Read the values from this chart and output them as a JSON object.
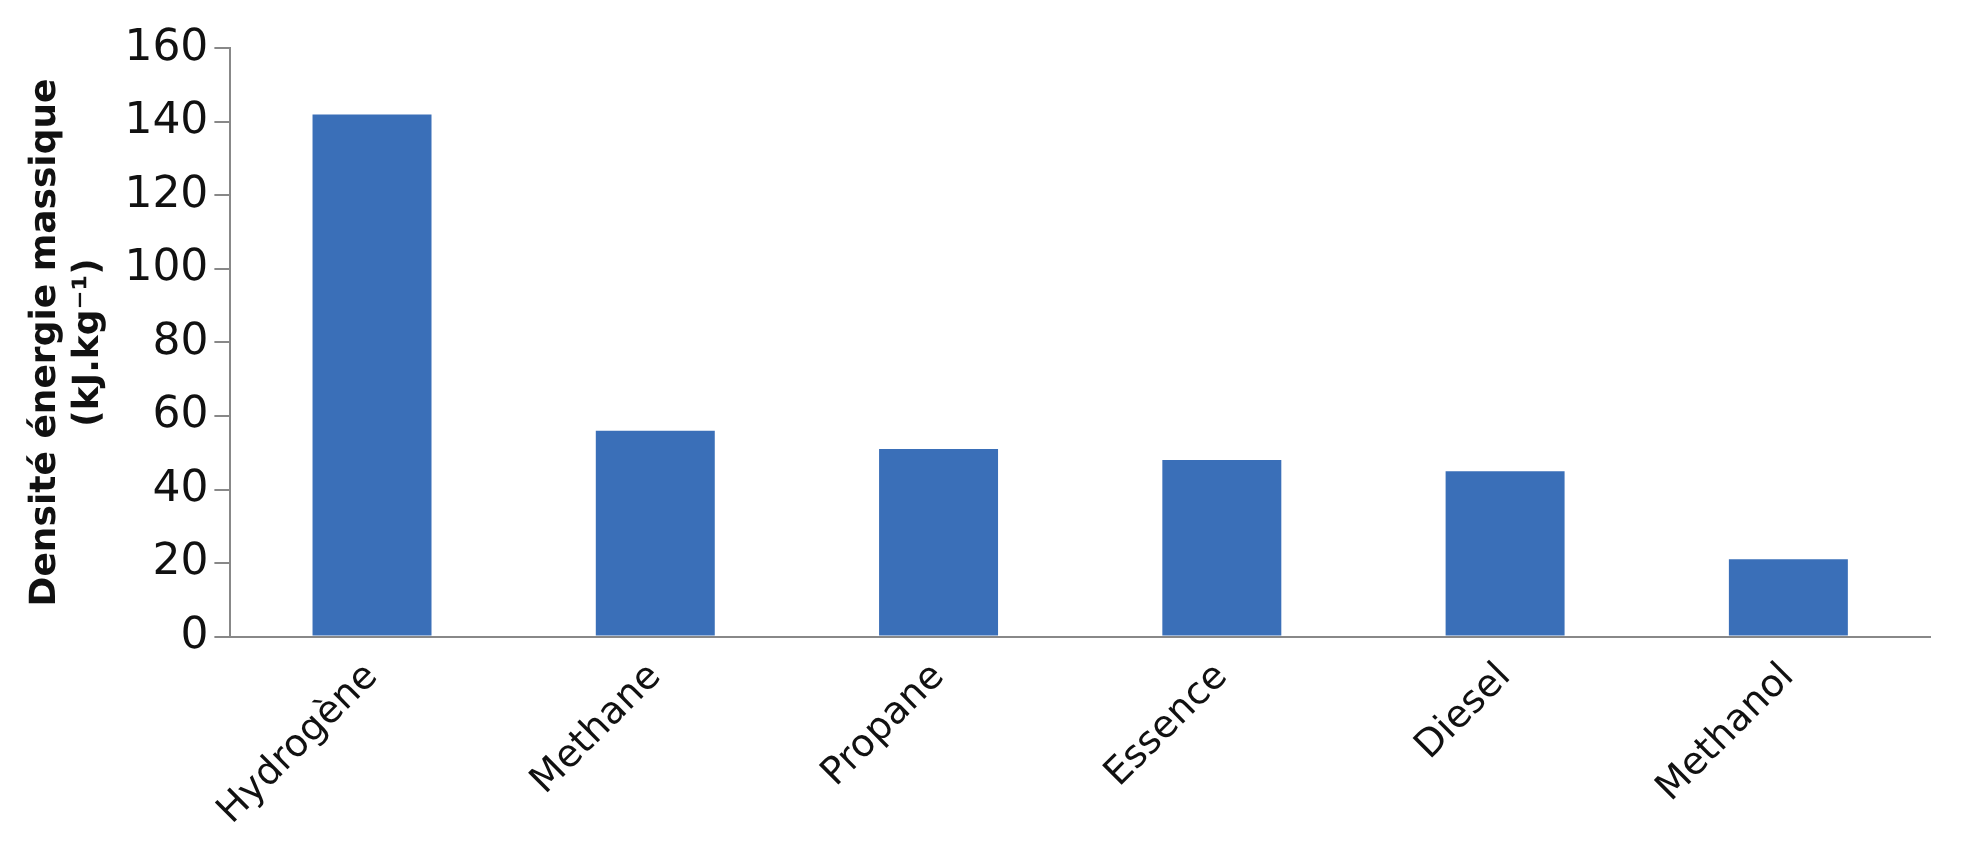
{
  "chart_data": {
    "type": "bar",
    "ylabel": "Densité énergie massique (kJ.kg⁻¹)",
    "categories": [
      "Hydrogène",
      "Methane",
      "Propane",
      "Essence",
      "Diesel",
      "Methanol"
    ],
    "values": [
      142,
      56,
      51,
      48,
      45,
      21
    ],
    "color": "#3a6fb8",
    "ylim": [
      0,
      160
    ],
    "yticks": [
      0,
      20,
      40,
      60,
      80,
      100,
      120,
      140,
      160
    ],
    "grid": false
  }
}
